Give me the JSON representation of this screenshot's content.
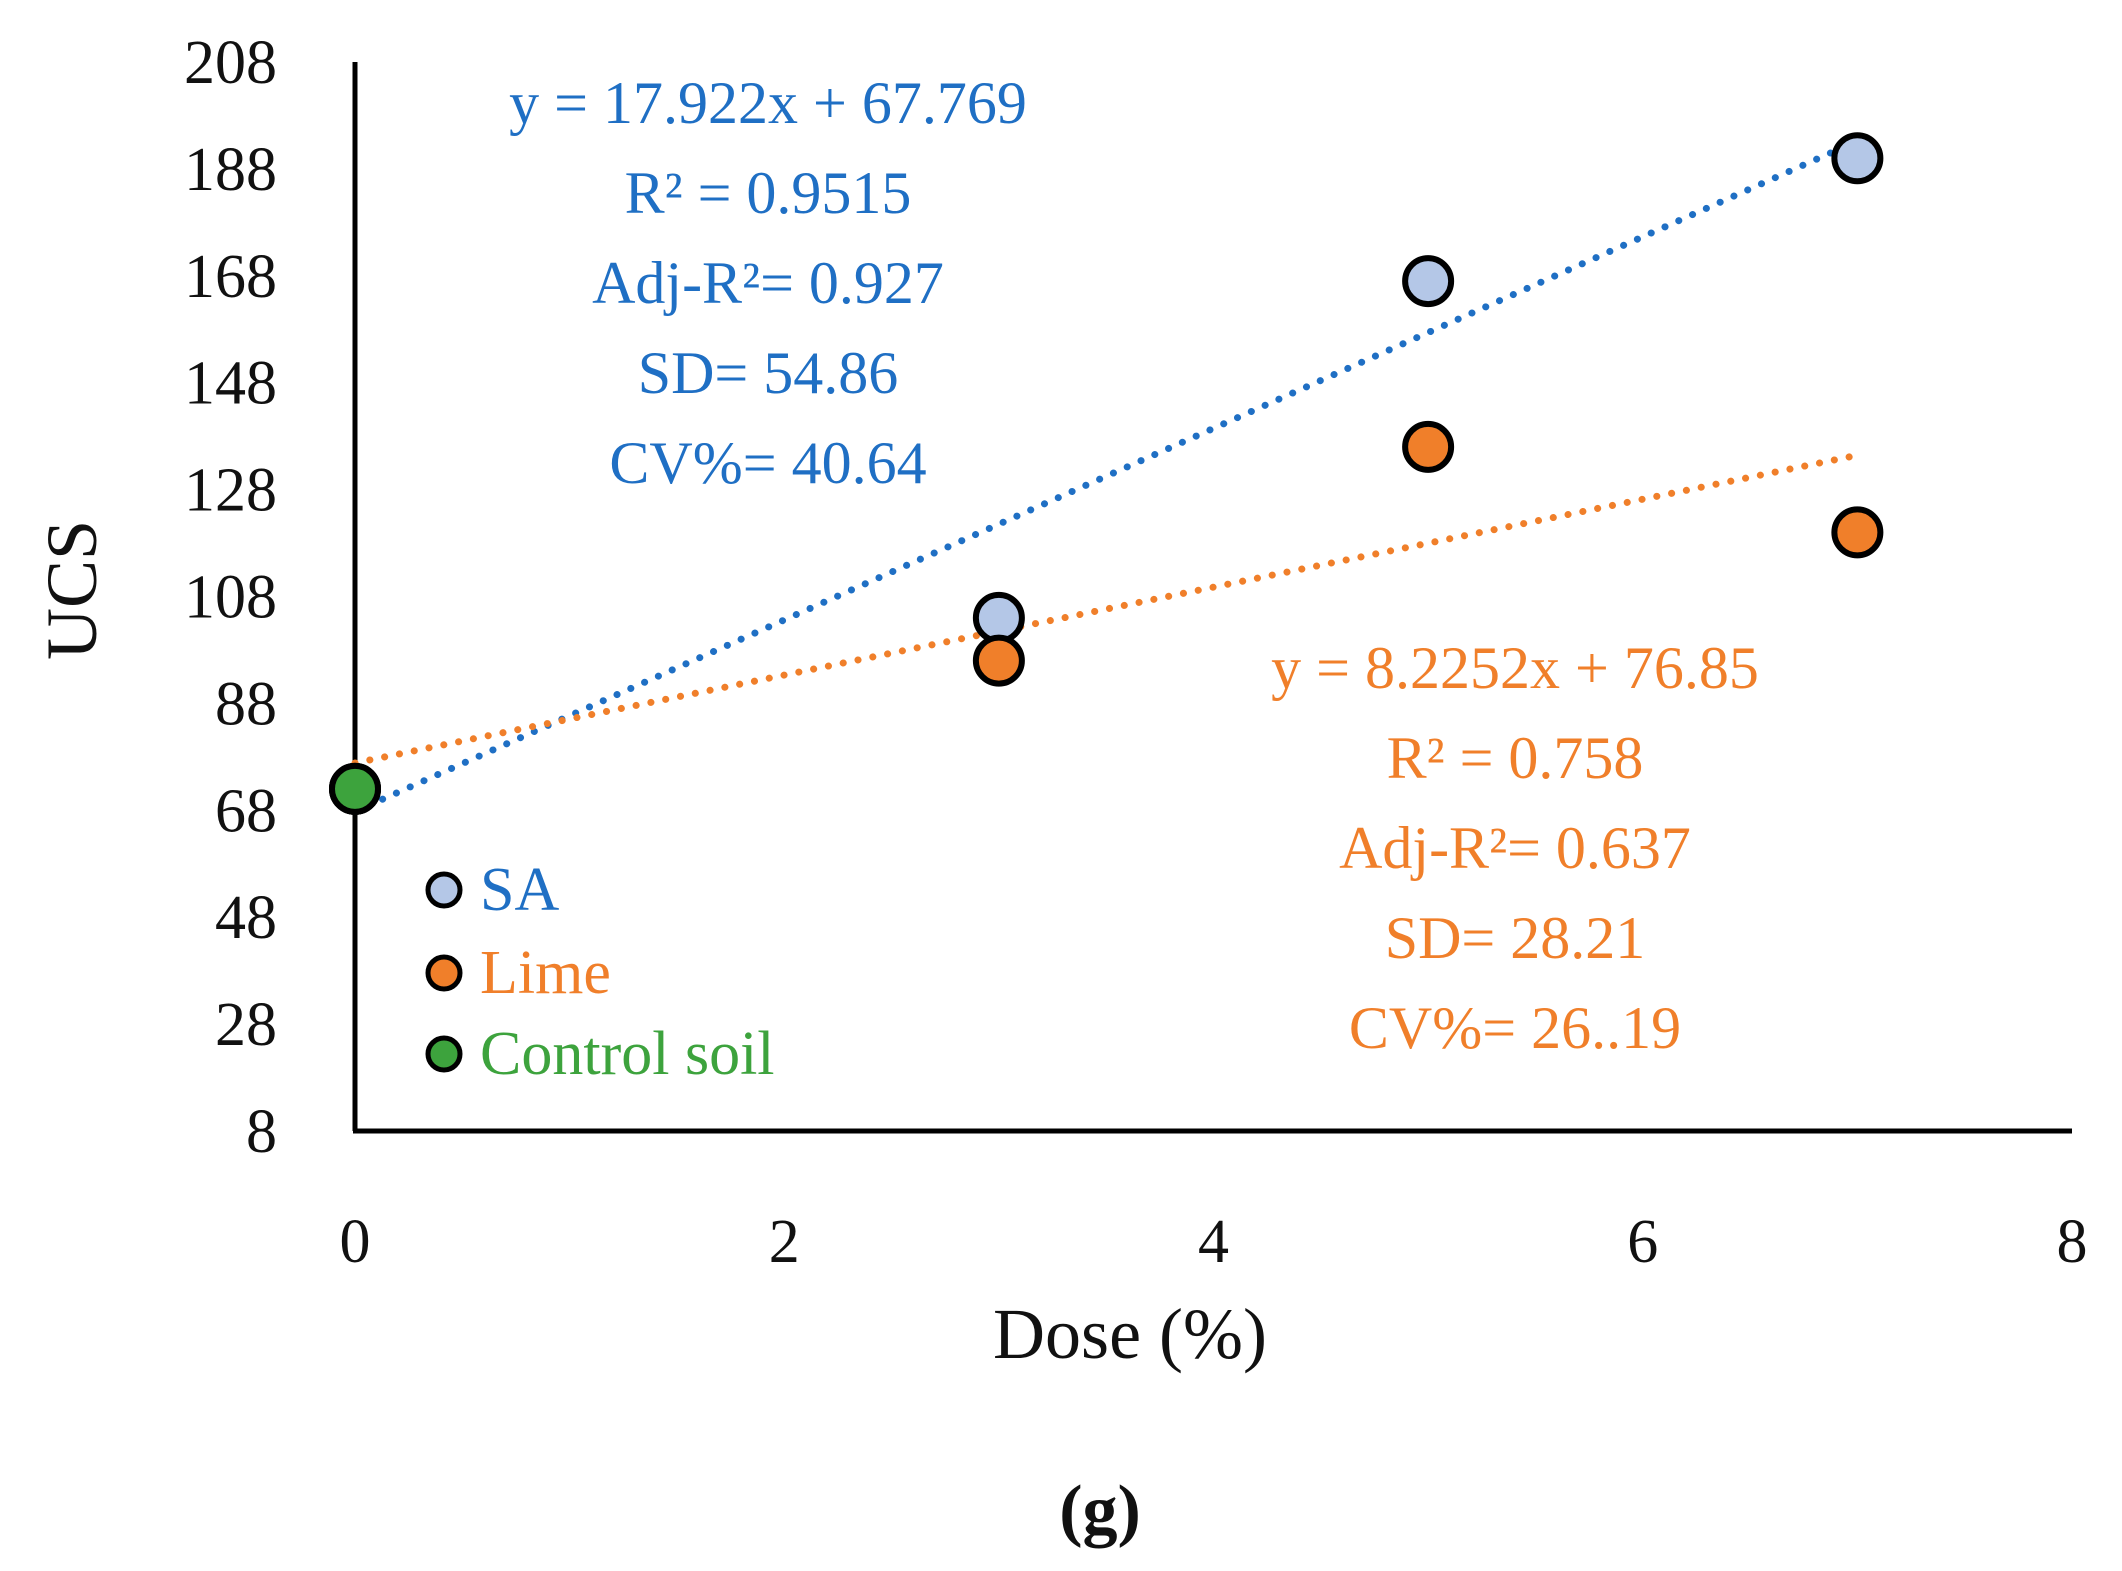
{
  "chart_data": {
    "type": "scatter",
    "xlabel": "Dose (%)",
    "ylabel": "UCS",
    "xlim": [
      0,
      8
    ],
    "ylim": [
      8,
      208
    ],
    "xticks": [
      "0",
      "2",
      "4",
      "6",
      "8"
    ],
    "yticks": [
      "208",
      "188",
      "168",
      "148",
      "128",
      "108",
      "88",
      "68",
      "48",
      "28",
      "8"
    ],
    "grid": false,
    "legend_position": "bottom-left",
    "series": [
      {
        "name": "SA",
        "color": "#1F6FC4",
        "fill": "#B4C7E7",
        "points": [
          {
            "x": 0,
            "y": 72
          },
          {
            "x": 3,
            "y": 104
          },
          {
            "x": 5,
            "y": 167
          },
          {
            "x": 7,
            "y": 190
          }
        ],
        "trendline": {
          "slope": 17.922,
          "intercept": 67.769,
          "x_range": [
            0,
            7
          ]
        },
        "stats": [
          "y = 17.922x + 67.769",
          "R² = 0.9515",
          "Adj-R²= 0.927",
          "SD= 54.86",
          "CV%= 40.64"
        ]
      },
      {
        "name": "Lime",
        "color": "#F07F2A",
        "fill": "#F07F2A",
        "points": [
          {
            "x": 0,
            "y": 72
          },
          {
            "x": 3,
            "y": 96
          },
          {
            "x": 5,
            "y": 136
          },
          {
            "x": 7,
            "y": 120
          }
        ],
        "trendline": {
          "slope": 8.2252,
          "intercept": 76.85,
          "x_range": [
            0,
            7
          ]
        },
        "stats": [
          "y = 8.2252x + 76.85",
          "R² = 0.758",
          "Adj-R²= 0.637",
          "SD= 28.21",
          "CV%= 26..19"
        ]
      },
      {
        "name": "Control soil",
        "color": "#3DA33D",
        "fill": "#3DA33D",
        "points": [
          {
            "x": 0,
            "y": 72
          }
        ]
      }
    ],
    "caption": "(g)"
  }
}
